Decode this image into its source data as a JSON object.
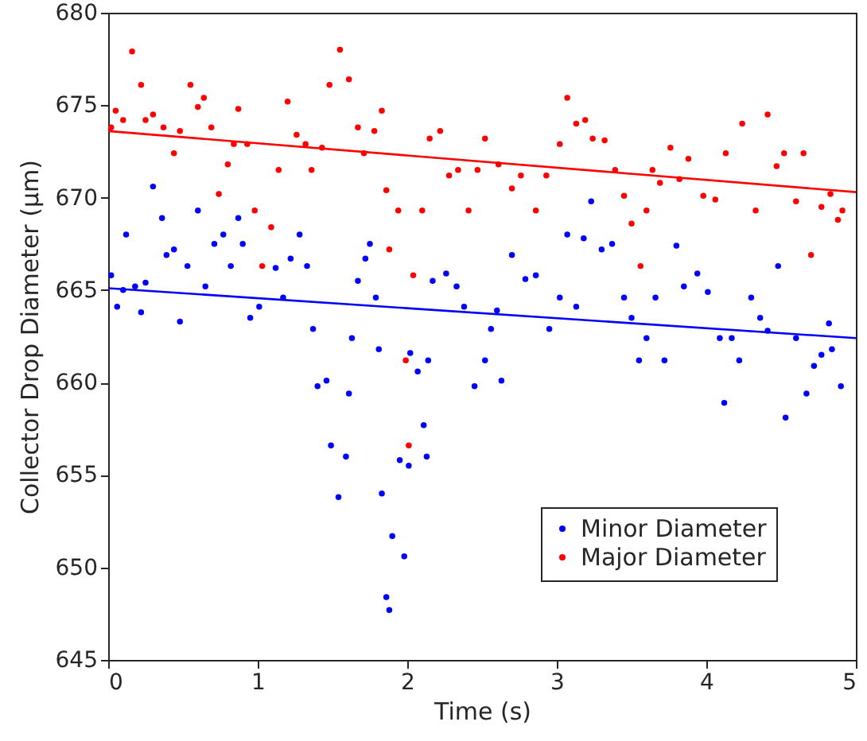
{
  "chart_data": {
    "type": "scatter",
    "xlabel": "Time (s)",
    "ylabel": "Collector Drop Diameter (μm)",
    "xlim": [
      0,
      5
    ],
    "xticks": [
      0,
      1,
      2,
      3,
      4,
      5
    ],
    "ylim": [
      645,
      680
    ],
    "yticks": [
      645,
      650,
      655,
      660,
      665,
      670,
      675,
      680
    ],
    "grid": false,
    "legend": "bottom right",
    "marker": "circle",
    "series": [
      {
        "name": "Minor Diameter",
        "color": "#0000ff",
        "x": [
          0.02,
          0.06,
          0.1,
          0.12,
          0.18,
          0.22,
          0.25,
          0.3,
          0.36,
          0.39,
          0.44,
          0.48,
          0.53,
          0.6,
          0.65,
          0.71,
          0.77,
          0.82,
          0.87,
          0.9,
          0.95,
          1.01,
          1.12,
          1.17,
          1.22,
          1.28,
          1.33,
          1.37,
          1.4,
          1.46,
          1.49,
          1.54,
          1.59,
          1.61,
          1.63,
          1.67,
          1.72,
          1.75,
          1.79,
          1.81,
          1.83,
          1.86,
          1.88,
          1.9,
          1.95,
          1.98,
          2.01,
          2.02,
          2.07,
          2.11,
          2.13,
          2.14,
          2.17,
          2.26,
          2.33,
          2.38,
          2.45,
          2.52,
          2.56,
          2.6,
          2.63,
          2.7,
          2.79,
          2.86,
          2.95,
          3.02,
          3.07,
          3.13,
          3.18,
          3.23,
          3.3,
          3.37,
          3.45,
          3.5,
          3.55,
          3.6,
          3.66,
          3.72,
          3.8,
          3.85,
          3.94,
          4.01,
          4.09,
          4.12,
          4.17,
          4.22,
          4.3,
          4.36,
          4.41,
          4.48,
          4.53,
          4.6,
          4.67,
          4.72,
          4.77,
          4.82,
          4.84,
          4.9
        ],
        "values": [
          665.8,
          664.1,
          665.0,
          668.0,
          665.2,
          663.8,
          665.4,
          670.6,
          668.9,
          666.9,
          667.2,
          663.3,
          666.3,
          669.3,
          665.2,
          667.5,
          668.0,
          666.3,
          668.9,
          667.5,
          663.5,
          664.1,
          666.2,
          664.6,
          666.7,
          668.0,
          666.3,
          662.9,
          659.8,
          660.1,
          656.6,
          653.8,
          656.0,
          659.4,
          662.4,
          665.5,
          666.7,
          667.5,
          664.6,
          661.8,
          654.0,
          648.4,
          647.7,
          651.7,
          655.8,
          650.6,
          655.5,
          661.6,
          660.6,
          657.7,
          656.0,
          661.2,
          665.5,
          665.9,
          665.2,
          664.1,
          659.8,
          661.2,
          662.9,
          663.9,
          660.1,
          666.9,
          665.6,
          665.8,
          662.9,
          664.6,
          668.0,
          664.1,
          667.8,
          669.8,
          667.2,
          667.5,
          664.6,
          663.5,
          661.2,
          662.4,
          664.6,
          661.2,
          667.4,
          665.2,
          665.9,
          664.9,
          662.4,
          658.9,
          662.4,
          661.2,
          664.6,
          663.5,
          662.8,
          666.3,
          658.1,
          662.4,
          659.4,
          660.9,
          661.5,
          663.2,
          661.8,
          659.8
        ]
      },
      {
        "name": "Major Diameter",
        "color": "#ff0000",
        "x": [
          0.02,
          0.05,
          0.1,
          0.16,
          0.22,
          0.25,
          0.3,
          0.37,
          0.44,
          0.48,
          0.55,
          0.6,
          0.64,
          0.69,
          0.74,
          0.8,
          0.84,
          0.87,
          0.93,
          0.98,
          1.03,
          1.09,
          1.14,
          1.2,
          1.26,
          1.32,
          1.36,
          1.43,
          1.48,
          1.55,
          1.61,
          1.67,
          1.71,
          1.78,
          1.83,
          1.86,
          1.88,
          1.94,
          1.99,
          2.01,
          2.04,
          2.1,
          2.15,
          2.22,
          2.28,
          2.34,
          2.41,
          2.47,
          2.52,
          2.61,
          2.7,
          2.76,
          2.86,
          2.93,
          3.02,
          3.07,
          3.13,
          3.19,
          3.24,
          3.32,
          3.39,
          3.45,
          3.5,
          3.56,
          3.6,
          3.64,
          3.69,
          3.76,
          3.82,
          3.88,
          3.98,
          4.06,
          4.13,
          4.24,
          4.33,
          4.41,
          4.47,
          4.52,
          4.6,
          4.65,
          4.7,
          4.77,
          4.83,
          4.88,
          4.91
        ],
        "values": [
          673.8,
          674.7,
          674.2,
          677.9,
          676.1,
          674.2,
          674.5,
          673.8,
          672.4,
          673.6,
          676.1,
          674.9,
          675.4,
          673.8,
          670.2,
          671.8,
          672.9,
          674.8,
          672.9,
          669.3,
          666.3,
          668.4,
          671.5,
          675.2,
          673.4,
          672.9,
          671.5,
          672.7,
          676.1,
          678.0,
          676.4,
          673.8,
          672.4,
          673.6,
          674.7,
          670.4,
          667.2,
          669.3,
          661.2,
          656.6,
          665.8,
          669.3,
          673.2,
          673.6,
          671.2,
          671.5,
          669.3,
          671.5,
          673.2,
          671.8,
          670.5,
          671.2,
          669.3,
          671.2,
          672.9,
          675.4,
          674.0,
          674.2,
          673.2,
          673.1,
          671.5,
          670.1,
          668.6,
          666.3,
          669.3,
          671.5,
          670.8,
          672.7,
          671.0,
          672.1,
          670.1,
          669.9,
          672.4,
          674.0,
          669.3,
          674.5,
          671.7,
          672.4,
          669.8,
          672.4,
          666.9,
          669.5,
          670.2,
          668.8,
          669.3
        ]
      },
      {
        "type": "line",
        "marker": "none",
        "color": "#0000ff",
        "x": [
          0,
          5
        ],
        "values": [
          665.1,
          662.4
        ]
      },
      {
        "type": "line",
        "marker": "none",
        "color": "#ff0000",
        "x": [
          0,
          5
        ],
        "values": [
          673.6,
          670.3
        ]
      }
    ]
  }
}
